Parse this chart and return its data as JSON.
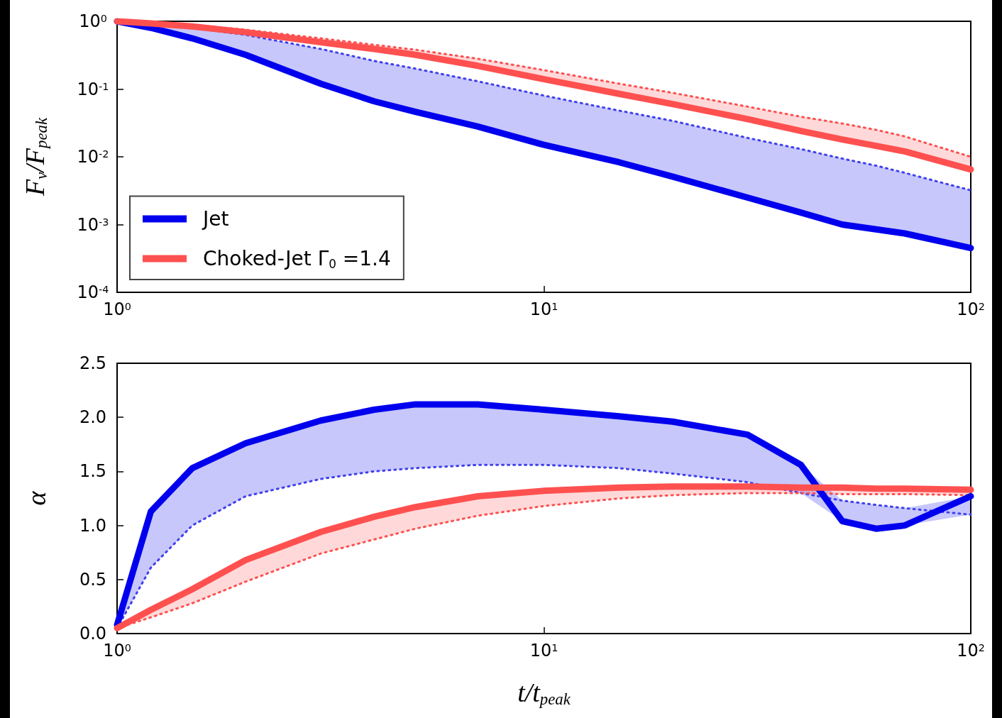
{
  "chart_data": [
    {
      "type": "line",
      "ylabel": "F$_{ν}$/F$_{peak}$",
      "log": "xy",
      "legend": "bottom left",
      "x": [
        1,
        1.2,
        1.5,
        2,
        3,
        4,
        5,
        7,
        10,
        15,
        20,
        30,
        40,
        50,
        60,
        70,
        100
      ],
      "xlim": [
        1,
        100
      ],
      "xticks": [
        {
          "value": 1,
          "label": "10$^{0}$"
        },
        {
          "value": 10,
          "label": "10$^{1}$"
        },
        {
          "value": 100,
          "label": "10$^{2}$"
        }
      ],
      "ylim": [
        0.0001,
        1
      ],
      "yticks": [
        {
          "value": 0.0001,
          "label": "10$^{-4}$"
        },
        {
          "value": 0.001,
          "label": "10$^{-3}$"
        },
        {
          "value": 0.01,
          "label": "10$^{-2}$"
        },
        {
          "value": 0.1,
          "label": "10$^{-1}$"
        },
        {
          "value": 1,
          "label": "10$^{0}$"
        }
      ],
      "series": [
        {
          "name": "Jet",
          "color": "#0000ee",
          "line_style": "solid",
          "values": [
            1,
            0.8,
            0.56,
            0.32,
            0.12,
            0.066,
            0.046,
            0.028,
            0.015,
            0.0083,
            0.0051,
            0.0025,
            0.0015,
            0.001,
            0.00085,
            0.00074,
            0.00045
          ],
          "lower": [
            1,
            0.8,
            0.56,
            0.32,
            0.12,
            0.066,
            0.046,
            0.028,
            0.015,
            0.0083,
            0.0051,
            0.0025,
            0.0015,
            0.001,
            0.00085,
            0.00074,
            0.00045
          ],
          "upper": [
            1,
            0.91,
            0.8,
            0.63,
            0.39,
            0.26,
            0.2,
            0.13,
            0.08,
            0.048,
            0.034,
            0.019,
            0.013,
            0.0094,
            0.0074,
            0.0058,
            0.0032
          ]
        },
        {
          "name": "Choked-Jet Γ$_{0}$ =1.4",
          "color": "#ff5050",
          "line_style": "solid",
          "values": [
            1,
            0.93,
            0.84,
            0.69,
            0.49,
            0.39,
            0.32,
            0.22,
            0.14,
            0.085,
            0.06,
            0.036,
            0.024,
            0.018,
            0.0145,
            0.012,
            0.0065
          ],
          "lower": [
            1,
            0.93,
            0.84,
            0.69,
            0.49,
            0.39,
            0.32,
            0.22,
            0.14,
            0.085,
            0.06,
            0.036,
            0.024,
            0.018,
            0.0145,
            0.012,
            0.0065
          ],
          "upper": [
            1,
            0.95,
            0.89,
            0.75,
            0.56,
            0.45,
            0.38,
            0.28,
            0.19,
            0.12,
            0.088,
            0.055,
            0.039,
            0.031,
            0.025,
            0.02,
            0.01
          ]
        },
        {
          "color": "#4040ee",
          "line_style": "dotted",
          "values": [
            1,
            0.91,
            0.8,
            0.63,
            0.39,
            0.26,
            0.2,
            0.13,
            0.08,
            0.048,
            0.034,
            0.019,
            0.013,
            0.0094,
            0.0074,
            0.0058,
            0.0032
          ]
        },
        {
          "color": "#ff5050",
          "line_style": "dotted",
          "values": [
            1,
            0.95,
            0.89,
            0.75,
            0.56,
            0.45,
            0.38,
            0.28,
            0.19,
            0.12,
            0.088,
            0.055,
            0.039,
            0.031,
            0.025,
            0.02,
            0.01
          ]
        }
      ]
    },
    {
      "type": "line",
      "xlabel": "t/t$_{peak}$",
      "ylabel": "α",
      "log": "x",
      "x": [
        1,
        1.2,
        1.5,
        2,
        3,
        4,
        5,
        7,
        10,
        15,
        20,
        30,
        40,
        50,
        60,
        70,
        100
      ],
      "xlim": [
        1,
        100
      ],
      "xticks": [
        {
          "value": 1,
          "label": "10$^{0}$"
        },
        {
          "value": 10,
          "label": "10$^{1}$"
        },
        {
          "value": 100,
          "label": "10$^{2}$"
        }
      ],
      "ylim": [
        0,
        2.5
      ],
      "yticks": [
        {
          "value": 0,
          "label": "0.0"
        },
        {
          "value": 0.5,
          "label": "0.5"
        },
        {
          "value": 1,
          "label": "1.0"
        },
        {
          "value": 1.5,
          "label": "1.5"
        },
        {
          "value": 2,
          "label": "2.0"
        },
        {
          "value": 2.5,
          "label": "2.5"
        }
      ],
      "series": [
        {
          "color": "#0000ee",
          "line_style": "solid",
          "values": [
            0.08,
            1.13,
            1.53,
            1.76,
            1.97,
            2.07,
            2.12,
            2.12,
            2.07,
            2.01,
            1.96,
            1.84,
            1.56,
            1.04,
            0.97,
            1.0,
            1.27
          ],
          "lower": [
            0.05,
            0.61,
            1.0,
            1.27,
            1.43,
            1.5,
            1.53,
            1.56,
            1.56,
            1.53,
            1.48,
            1.4,
            1.3,
            1.04,
            0.97,
            1.0,
            1.1
          ],
          "upper": [
            0.08,
            1.13,
            1.53,
            1.76,
            1.97,
            2.07,
            2.12,
            2.12,
            2.07,
            2.01,
            1.96,
            1.84,
            1.56,
            1.23,
            1.19,
            1.16,
            1.27
          ]
        },
        {
          "color": "#ff5050",
          "line_style": "solid",
          "values": [
            0.05,
            0.22,
            0.41,
            0.68,
            0.94,
            1.08,
            1.17,
            1.27,
            1.32,
            1.35,
            1.36,
            1.36,
            1.35,
            1.35,
            1.34,
            1.34,
            1.33
          ],
          "lower": [
            0.05,
            0.15,
            0.28,
            0.48,
            0.74,
            0.87,
            0.97,
            1.09,
            1.18,
            1.25,
            1.28,
            1.3,
            1.3,
            1.29,
            1.29,
            1.29,
            1.28
          ],
          "upper": [
            0.05,
            0.22,
            0.41,
            0.68,
            0.94,
            1.08,
            1.17,
            1.27,
            1.32,
            1.35,
            1.36,
            1.36,
            1.35,
            1.35,
            1.34,
            1.34,
            1.33
          ]
        },
        {
          "color": "#4040ee",
          "line_style": "dotted",
          "values": [
            0.05,
            0.61,
            1.0,
            1.27,
            1.43,
            1.5,
            1.53,
            1.56,
            1.56,
            1.53,
            1.48,
            1.4,
            1.3,
            1.23,
            1.19,
            1.16,
            1.1
          ]
        },
        {
          "color": "#ff5050",
          "line_style": "dotted",
          "values": [
            0.05,
            0.15,
            0.28,
            0.48,
            0.74,
            0.87,
            0.97,
            1.09,
            1.18,
            1.25,
            1.28,
            1.3,
            1.3,
            1.29,
            1.29,
            1.29,
            1.28
          ]
        }
      ]
    }
  ]
}
